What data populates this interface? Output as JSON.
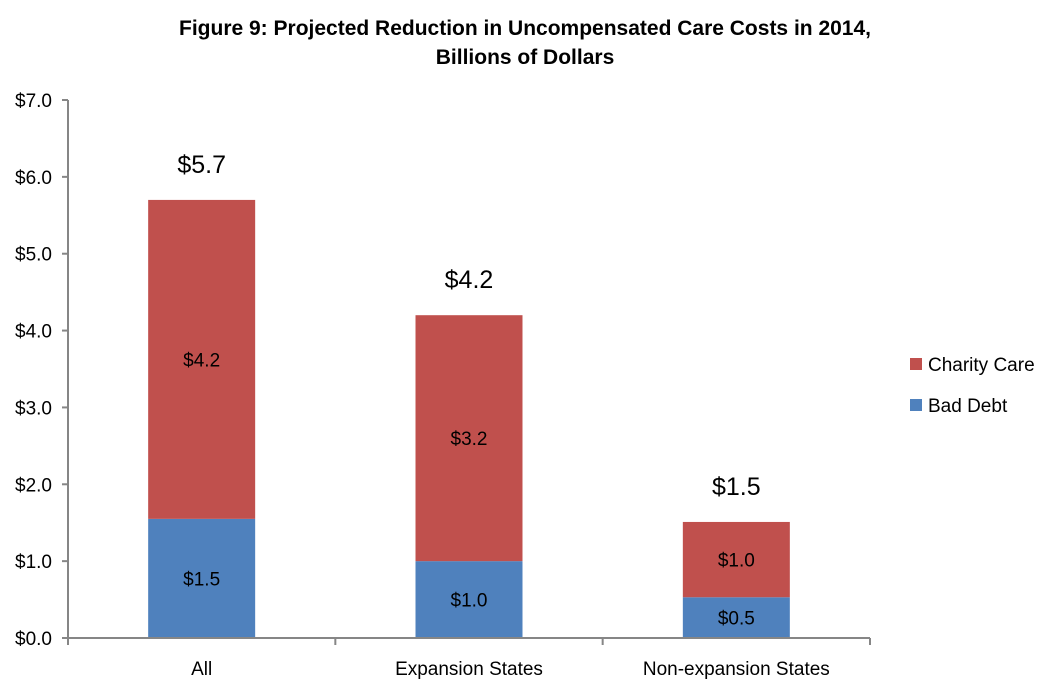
{
  "chart_data": {
    "type": "bar",
    "stacked": true,
    "title_line1": "Figure 9: Projected Reduction in Uncompensated Care Costs in 2014,",
    "title_line2": "Billions of Dollars",
    "xlabel": "",
    "ylabel": "",
    "ylim": [
      0,
      7
    ],
    "yticks": [
      0,
      1,
      2,
      3,
      4,
      5,
      6,
      7
    ],
    "ytick_labels": [
      "$0.0",
      "$1.0",
      "$2.0",
      "$3.0",
      "$4.0",
      "$5.0",
      "$6.0",
      "$7.0"
    ],
    "categories": [
      "All",
      "Expansion States",
      "Non-expansion States"
    ],
    "series": [
      {
        "name": "Bad Debt",
        "color": "#4F81BD",
        "values": [
          1.55,
          1.0,
          0.53
        ],
        "labels": [
          "$1.5",
          "$1.0",
          "$0.5"
        ]
      },
      {
        "name": "Charity Care",
        "color": "#C0504D",
        "values": [
          4.15,
          3.2,
          0.98
        ],
        "labels": [
          "$4.2",
          "$3.2",
          "$1.0"
        ]
      }
    ],
    "totals": [
      5.7,
      4.2,
      1.5
    ],
    "total_labels": [
      "$5.7",
      "$4.2",
      "$1.5"
    ],
    "legend_entries": [
      "Charity Care",
      "Bad Debt"
    ],
    "legend_placement": "right",
    "grid": false
  }
}
